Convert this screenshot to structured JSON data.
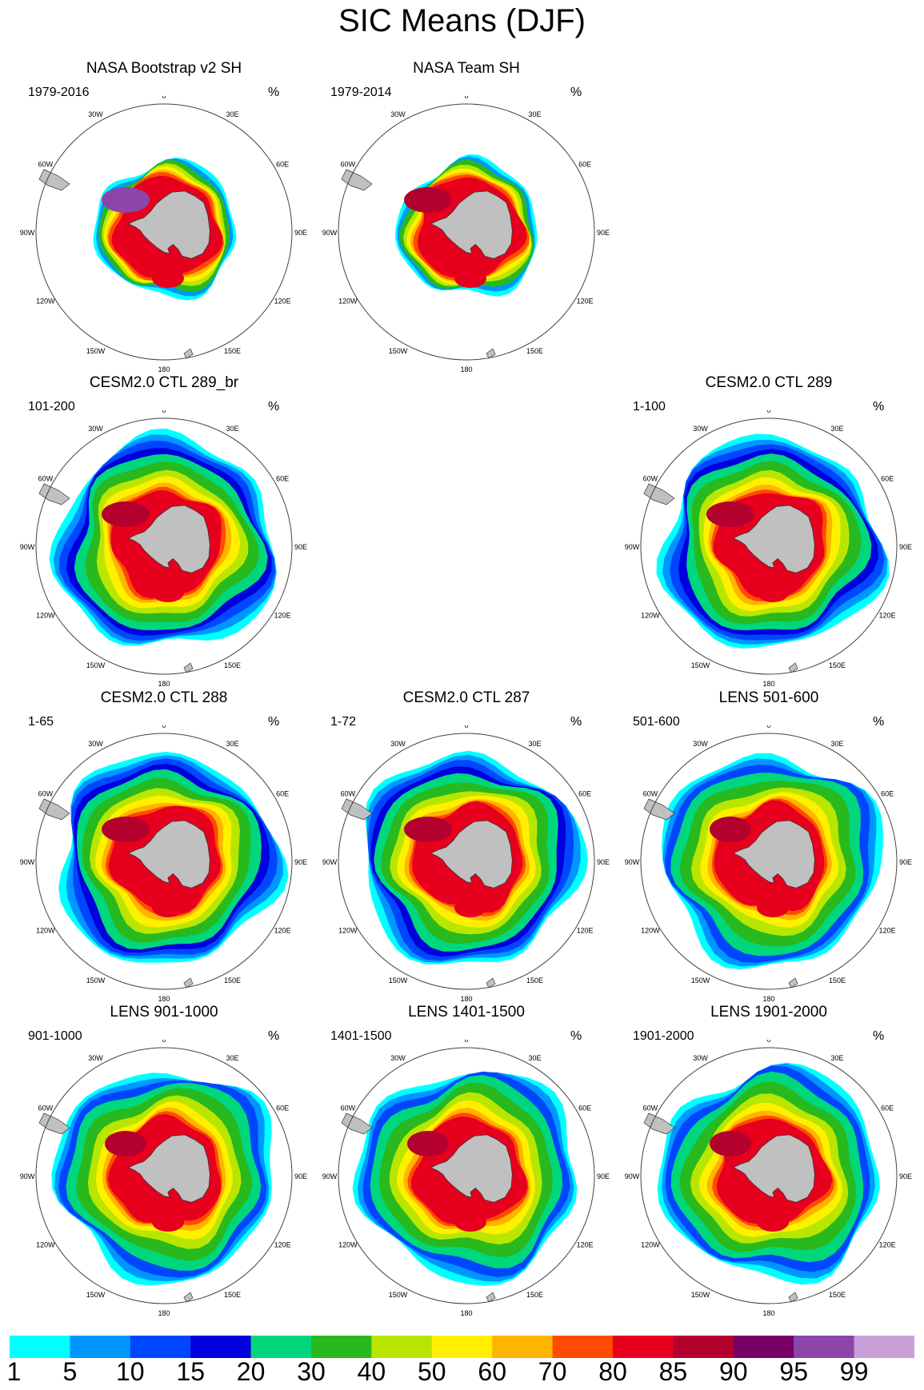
{
  "title": "SIC Means (DJF)",
  "unit": "%",
  "panels": [
    {
      "title": "NASA Bootstrap v2 SH",
      "period": "1979-2016",
      "style": "obs1"
    },
    {
      "title": "NASA Team SH",
      "period": "1979-2014",
      "style": "obs2"
    },
    {
      "title": "CESM2.0 CTL 289_br",
      "period": "101-200",
      "style": "cesm"
    },
    {
      "title": "CESM2.0 CTL 289",
      "period": "1-100",
      "style": "cesm"
    },
    {
      "title": "CESM2.0 CTL 288",
      "period": "1-65",
      "style": "cesm"
    },
    {
      "title": "CESM2.0 CTL 287",
      "period": "1-72",
      "style": "cesm"
    },
    {
      "title": "LENS 501-600",
      "period": "501-600",
      "style": "lens"
    },
    {
      "title": "LENS 901-1000",
      "period": "901-1000",
      "style": "lens"
    },
    {
      "title": "LENS 1401-1500",
      "period": "1401-1500",
      "style": "lens"
    },
    {
      "title": "LENS 1901-2000",
      "period": "1901-2000",
      "style": "lens"
    }
  ],
  "longitude_labels": [
    "0",
    "30E",
    "60E",
    "90E",
    "120E",
    "150E",
    "180",
    "150W",
    "120W",
    "90W",
    "60W",
    "30W"
  ],
  "colorbar": {
    "labels": [
      "1",
      "5",
      "10",
      "15",
      "20",
      "30",
      "40",
      "50",
      "60",
      "70",
      "80",
      "85",
      "90",
      "95",
      "99"
    ],
    "colors": [
      "#00ffff",
      "#0096ff",
      "#0046ff",
      "#0000dc",
      "#00d77d",
      "#28b91e",
      "#b9e600",
      "#fff000",
      "#ffb400",
      "#ff4b00",
      "#e6001e",
      "#b4002d",
      "#780064",
      "#8c46aa",
      "#c8a0d7"
    ]
  },
  "colors": {
    "land": "#c0c0c0",
    "coast": "#333333",
    "circle": "#444444"
  }
}
